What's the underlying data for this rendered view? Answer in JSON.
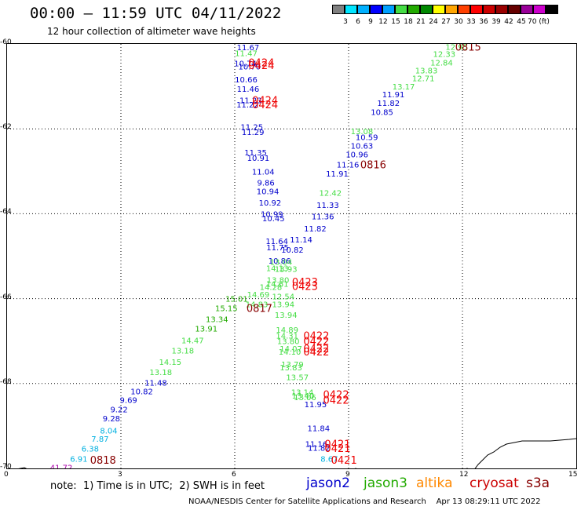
{
  "header": {
    "title": "00:00 – 11:59 UTC 04/11/2022",
    "subtitle": "12 hour collection of altimeter wave heights"
  },
  "colorbar": {
    "colors": [
      "#808080",
      "#00e5ff",
      "#00b0ff",
      "#0000ff",
      "#00a0ff",
      "#44dd44",
      "#22aa00",
      "#008800",
      "#ffff00",
      "#ffa500",
      "#ff4000",
      "#ff0000",
      "#cc0000",
      "#990000",
      "#660000",
      "#990099",
      "#cc00cc",
      "#000000"
    ],
    "labels": [
      "3",
      "6",
      "9",
      "12",
      "15",
      "18",
      "21",
      "24",
      "27",
      "30",
      "33",
      "36",
      "39",
      "42",
      "45",
      "70 (ft)"
    ]
  },
  "axes": {
    "y_labels": [
      "-60",
      "-62",
      "-64",
      "-66",
      "-68",
      "-70"
    ],
    "x_labels": [
      "0",
      "3",
      "6",
      "9",
      "12",
      "15"
    ]
  },
  "tracks": [
    {
      "name": "jason2-track",
      "color": "#0000cc",
      "points": [
        {
          "v": "11.67",
          "lon": 6.35,
          "lat": -60.07
        },
        {
          "v": "10.74",
          "lon": 6.28,
          "lat": -60.45
        },
        {
          "v": "10.70",
          "lon": 6.39,
          "lat": -60.53
        },
        {
          "v": "10.66",
          "lon": 6.3,
          "lat": -60.83
        },
        {
          "v": "11.46",
          "lon": 6.35,
          "lat": -61.05
        },
        {
          "v": "11.23",
          "lon": 6.42,
          "lat": -61.32
        },
        {
          "v": "11.22",
          "lon": 6.34,
          "lat": -61.42
        },
        {
          "v": "11.25",
          "lon": 6.45,
          "lat": -61.95
        },
        {
          "v": "11.29",
          "lon": 6.48,
          "lat": -62.07
        },
        {
          "v": "11.35",
          "lon": 6.55,
          "lat": -62.55
        },
        {
          "v": "10.91",
          "lon": 6.62,
          "lat": -62.68
        },
        {
          "v": "11.04",
          "lon": 6.75,
          "lat": -63.0
        },
        {
          "v": "9.86",
          "lon": 6.82,
          "lat": -63.26
        },
        {
          "v": "10.94",
          "lon": 6.87,
          "lat": -63.47
        },
        {
          "v": "10.92",
          "lon": 6.93,
          "lat": -63.73
        },
        {
          "v": "10.99",
          "lon": 6.98,
          "lat": -64.0
        },
        {
          "v": "10.45",
          "lon": 7.02,
          "lat": -64.1
        },
        {
          "v": "11.64",
          "lon": 7.11,
          "lat": -64.64
        },
        {
          "v": "11.75",
          "lon": 7.13,
          "lat": -64.79
        },
        {
          "v": "10.82",
          "lon": 7.52,
          "lat": -64.84
        },
        {
          "v": "10.86",
          "lon": 7.18,
          "lat": -65.1
        },
        {
          "v": "11.14",
          "lon": 7.75,
          "lat": -64.6
        },
        {
          "v": "11.82",
          "lon": 8.12,
          "lat": -64.34
        },
        {
          "v": "11.36",
          "lon": 8.32,
          "lat": -64.06
        },
        {
          "v": "11.33",
          "lon": 8.45,
          "lat": -63.79
        },
        {
          "v": "11.91",
          "lon": 8.7,
          "lat": -63.05
        },
        {
          "v": "11.16",
          "lon": 8.98,
          "lat": -62.84
        },
        {
          "v": "10.96",
          "lon": 9.22,
          "lat": -62.6
        },
        {
          "v": "10.63",
          "lon": 9.35,
          "lat": -62.39
        },
        {
          "v": "10.59",
          "lon": 9.48,
          "lat": -62.19
        },
        {
          "v": "10.85",
          "lon": 9.88,
          "lat": -61.6
        },
        {
          "v": "11.82",
          "lon": 10.05,
          "lat": -61.39
        },
        {
          "v": "11.91",
          "lon": 10.18,
          "lat": -61.18
        },
        {
          "v": "11.95",
          "lon": 8.13,
          "lat": -68.48
        },
        {
          "v": "11.84",
          "lon": 8.21,
          "lat": -69.05
        },
        {
          "v": "11.16",
          "lon": 8.15,
          "lat": -69.42
        },
        {
          "v": "11.82",
          "lon": 8.22,
          "lat": -69.51
        },
        {
          "v": "11.48",
          "lon": 3.92,
          "lat": -67.98
        },
        {
          "v": "10.82",
          "lon": 3.55,
          "lat": -68.18
        },
        {
          "v": "9.69",
          "lon": 3.2,
          "lat": -68.38
        },
        {
          "v": "9.22",
          "lon": 2.95,
          "lat": -68.6
        },
        {
          "v": "9.28",
          "lon": 2.75,
          "lat": -68.82
        }
      ]
    },
    {
      "name": "jason3-track",
      "color": "#22aa00",
      "points": [
        {
          "v": "15.01",
          "lon": 6.05,
          "lat": -66.0
        },
        {
          "v": "15.15",
          "lon": 5.78,
          "lat": -66.22
        },
        {
          "v": "13.34",
          "lon": 5.53,
          "lat": -66.48
        },
        {
          "v": "13.91",
          "lon": 5.25,
          "lat": -66.7
        }
      ]
    },
    {
      "name": "light-green-track",
      "color": "#44dd44",
      "points": [
        {
          "v": "12.95",
          "lon": 11.85,
          "lat": -60.06
        },
        {
          "v": "12.33",
          "lon": 11.52,
          "lat": -60.23
        },
        {
          "v": "12.84",
          "lon": 11.45,
          "lat": -60.43
        },
        {
          "v": "13.83",
          "lon": 11.05,
          "lat": -60.62
        },
        {
          "v": "12.71",
          "lon": 10.97,
          "lat": -60.8
        },
        {
          "v": "13.17",
          "lon": 10.45,
          "lat": -61.0
        },
        {
          "v": "13.08",
          "lon": 9.35,
          "lat": -62.05
        },
        {
          "v": "12.42",
          "lon": 8.52,
          "lat": -63.5
        },
        {
          "v": "11.47",
          "lon": 6.3,
          "lat": -60.21
        },
        {
          "v": "13.04",
          "lon": 7.22,
          "lat": -65.13
        },
        {
          "v": "14.13",
          "lon": 7.12,
          "lat": -65.28
        },
        {
          "v": "13.93",
          "lon": 7.35,
          "lat": -65.3
        },
        {
          "v": "13.80",
          "lon": 7.14,
          "lat": -65.55
        },
        {
          "v": "14.61",
          "lon": 7.12,
          "lat": -65.65
        },
        {
          "v": "14.28",
          "lon": 6.95,
          "lat": -65.72
        },
        {
          "v": "14.69",
          "lon": 6.62,
          "lat": -65.9
        },
        {
          "v": "12.54",
          "lon": 7.28,
          "lat": -65.94
        },
        {
          "v": "14.83",
          "lon": 6.58,
          "lat": -66.13
        },
        {
          "v": "13.94",
          "lon": 7.28,
          "lat": -66.13
        },
        {
          "v": "13.94",
          "lon": 7.35,
          "lat": -66.38
        },
        {
          "v": "14.89",
          "lon": 7.38,
          "lat": -66.73
        },
        {
          "v": "14.31",
          "lon": 7.38,
          "lat": -66.87
        },
        {
          "v": "13.80",
          "lon": 7.41,
          "lat": -67.0
        },
        {
          "v": "14.07",
          "lon": 7.48,
          "lat": -67.17
        },
        {
          "v": "14.10",
          "lon": 7.45,
          "lat": -67.25
        },
        {
          "v": "13.79",
          "lon": 7.52,
          "lat": -67.54
        },
        {
          "v": "13.83",
          "lon": 7.48,
          "lat": -67.62
        },
        {
          "v": "13.57",
          "lon": 7.65,
          "lat": -67.85
        },
        {
          "v": "13.14",
          "lon": 7.78,
          "lat": -68.2
        },
        {
          "v": "13.40",
          "lon": 7.8,
          "lat": -68.28
        },
        {
          "v": "13.06",
          "lon": 7.85,
          "lat": -68.32
        },
        {
          "v": "14.47",
          "lon": 4.89,
          "lat": -66.98
        },
        {
          "v": "13.18",
          "lon": 4.63,
          "lat": -67.22
        },
        {
          "v": "14.15",
          "lon": 4.3,
          "lat": -67.49
        },
        {
          "v": "13.18",
          "lon": 4.05,
          "lat": -67.73
        }
      ]
    },
    {
      "name": "cyan-track",
      "color": "#00b0e0",
      "points": [
        {
          "v": "8.04",
          "lon": 2.68,
          "lat": -69.1
        },
        {
          "v": "7.87",
          "lon": 2.45,
          "lat": -69.3
        },
        {
          "v": "6.38",
          "lon": 2.19,
          "lat": -69.53
        },
        {
          "v": "6.91",
          "lon": 1.89,
          "lat": -69.77
        },
        {
          "v": "8.67",
          "lon": 8.49,
          "lat": -69.77
        }
      ]
    },
    {
      "name": "purple-track",
      "color": "#aa00aa",
      "points": [
        {
          "v": "41.72",
          "lon": 1.43,
          "lat": -69.97
        }
      ]
    }
  ],
  "time_labels": [
    {
      "v": "0424",
      "color": "#ee0000",
      "lon": 6.7,
      "lat": -60.43
    },
    {
      "v": "0424",
      "color": "#ee0000",
      "lon": 6.7,
      "lat": -60.5
    },
    {
      "v": "0424",
      "color": "#ee0000",
      "lon": 6.8,
      "lat": -61.32
    },
    {
      "v": "0424",
      "color": "#ee0000",
      "lon": 6.8,
      "lat": -61.42
    },
    {
      "v": "0423",
      "color": "#ee0000",
      "lon": 7.85,
      "lat": -65.6
    },
    {
      "v": "0423",
      "color": "#ee0000",
      "lon": 7.85,
      "lat": -65.7
    },
    {
      "v": "0422",
      "color": "#ee0000",
      "lon": 8.15,
      "lat": -66.87
    },
    {
      "v": "0422",
      "color": "#ee0000",
      "lon": 8.15,
      "lat": -67.0
    },
    {
      "v": "0422",
      "color": "#ee0000",
      "lon": 8.15,
      "lat": -67.17
    },
    {
      "v": "0422",
      "color": "#ee0000",
      "lon": 8.15,
      "lat": -67.25
    },
    {
      "v": "0422",
      "color": "#ee0000",
      "lon": 8.67,
      "lat": -68.25
    },
    {
      "v": "0422",
      "color": "#ee0000",
      "lon": 8.67,
      "lat": -68.38
    },
    {
      "v": "0421",
      "color": "#ee0000",
      "lon": 8.71,
      "lat": -69.42
    },
    {
      "v": "0421",
      "color": "#ee0000",
      "lon": 8.71,
      "lat": -69.52
    },
    {
      "v": "0421",
      "color": "#ee0000",
      "lon": 8.88,
      "lat": -69.8
    },
    {
      "v": "0815",
      "color": "#880000",
      "lon": 12.15,
      "lat": -60.06
    },
    {
      "v": "0816",
      "color": "#880000",
      "lon": 9.65,
      "lat": -62.84
    },
    {
      "v": "0817",
      "color": "#880000",
      "lon": 6.65,
      "lat": -66.22
    },
    {
      "v": "0818",
      "color": "#880000",
      "lon": 2.53,
      "lat": -69.8
    }
  ],
  "legend": {
    "note": "note:  1) Time is in UTC;  2) SWH is in feet",
    "satellites": [
      {
        "name": "jason2",
        "color": "#0000cc"
      },
      {
        "name": "jason3",
        "color": "#22aa00"
      },
      {
        "name": "altika",
        "color": "#ff8800"
      },
      {
        "name": "cryosat",
        "color": "#cc0000"
      },
      {
        "name": "s3a",
        "color": "#880000"
      }
    ]
  },
  "footer": {
    "credit": "NOAA/NESDIS Center for Satellite Applications and Research",
    "timestamp": "Apr 13 08:29:11 UTC 2022"
  }
}
